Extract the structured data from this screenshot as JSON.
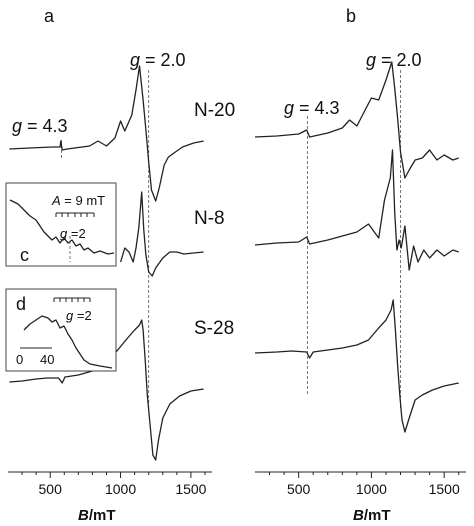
{
  "chart_data": [
    {
      "type": "line",
      "panel_label": "a",
      "xlabel_italic": "B",
      "xlabel_unit": "/mT",
      "xlim": [
        200,
        1650
      ],
      "xticks": [
        500,
        1000,
        1500
      ],
      "series": [
        {
          "name": "N-20",
          "points": [
            [
              210,
              149
            ],
            [
              350,
              148
            ],
            [
              520,
              147
            ],
            [
              570,
              147
            ],
            [
              575,
              141
            ],
            [
              585,
              150
            ],
            [
              620,
              149
            ],
            [
              780,
              146
            ],
            [
              840,
              141
            ],
            [
              900,
              146
            ],
            [
              960,
              138
            ],
            [
              1000,
              121
            ],
            [
              1030,
              131
            ],
            [
              1080,
              115
            ],
            [
              1110,
              90
            ],
            [
              1135,
              66
            ],
            [
              1160,
              100
            ],
            [
              1180,
              130
            ],
            [
              1200,
              162
            ],
            [
              1220,
              190
            ],
            [
              1250,
              201
            ],
            [
              1275,
              188
            ],
            [
              1310,
              165
            ],
            [
              1340,
              157
            ],
            [
              1390,
              152
            ],
            [
              1440,
              147
            ],
            [
              1520,
              143
            ],
            [
              1590,
              141
            ]
          ]
        },
        {
          "name": "N-8",
          "points": [
            [
              1000,
              262
            ],
            [
              1030,
              248
            ],
            [
              1060,
              252
            ],
            [
              1090,
              262
            ],
            [
              1110,
              248
            ],
            [
              1130,
              228
            ],
            [
              1150,
              192
            ],
            [
              1165,
              230
            ],
            [
              1180,
              255
            ],
            [
              1200,
              272
            ],
            [
              1225,
              276
            ],
            [
              1250,
              268
            ],
            [
              1300,
              258
            ],
            [
              1350,
              252
            ],
            [
              1400,
              252
            ],
            [
              1450,
              254
            ],
            [
              1520,
              253
            ],
            [
              1590,
              252
            ]
          ]
        },
        {
          "name": "S-28",
          "points": [
            [
              210,
              382
            ],
            [
              300,
              381
            ],
            [
              400,
              379
            ],
            [
              480,
              378
            ],
            [
              560,
              378
            ],
            [
              585,
              383
            ],
            [
              605,
              377
            ],
            [
              700,
              375
            ],
            [
              800,
              371
            ],
            [
              900,
              362
            ],
            [
              980,
              350
            ],
            [
              1050,
              338
            ],
            [
              1100,
              330
            ],
            [
              1135,
              325
            ],
            [
              1150,
              320
            ],
            [
              1160,
              330
            ],
            [
              1175,
              360
            ],
            [
              1190,
              395
            ],
            [
              1210,
              425
            ],
            [
              1230,
              455
            ],
            [
              1250,
              460
            ],
            [
              1270,
              440
            ],
            [
              1300,
              418
            ],
            [
              1350,
              404
            ],
            [
              1420,
              396
            ],
            [
              1500,
              391
            ],
            [
              1590,
              389
            ]
          ]
        }
      ],
      "annotations": [
        {
          "text_italic": "g",
          "text_rest": " = 4.3",
          "x": 580
        },
        {
          "text_italic": "g",
          "text_rest": " = 2.0",
          "x": 1200
        }
      ],
      "insets": [
        {
          "label": "c",
          "a_italic": "A",
          "a_rest": " = 9 mT",
          "g_italic": "g",
          "g_rest": " =2"
        },
        {
          "label": "d",
          "g_italic": "g",
          "g_rest": " =2",
          "scale_min": "0",
          "scale_max": "40"
        }
      ]
    },
    {
      "type": "line",
      "panel_label": "b",
      "xlabel_italic": "B",
      "xlabel_unit": "/mT",
      "xlim": [
        200,
        1650
      ],
      "xticks": [
        500,
        1000,
        1500
      ],
      "series": [
        {
          "name": "",
          "points": [
            [
              200,
              137
            ],
            [
              350,
              136
            ],
            [
              500,
              134
            ],
            [
              555,
              130
            ],
            [
              575,
              137
            ],
            [
              700,
              133
            ],
            [
              800,
              128
            ],
            [
              850,
              120
            ],
            [
              900,
              126
            ],
            [
              950,
              112
            ],
            [
              1000,
              98
            ],
            [
              1050,
              100
            ],
            [
              1100,
              80
            ],
            [
              1140,
              62
            ],
            [
              1160,
              88
            ],
            [
              1180,
              118
            ],
            [
              1200,
              152
            ],
            [
              1230,
              178
            ],
            [
              1260,
              170
            ],
            [
              1300,
              160
            ],
            [
              1350,
              158
            ],
            [
              1400,
              150
            ],
            [
              1450,
              160
            ],
            [
              1500,
              155
            ],
            [
              1560,
              160
            ],
            [
              1600,
              158
            ]
          ]
        },
        {
          "name": "",
          "points": [
            [
              200,
              245
            ],
            [
              350,
              243
            ],
            [
              500,
              242
            ],
            [
              555,
              237
            ],
            [
              575,
              244
            ],
            [
              700,
              240
            ],
            [
              800,
              236
            ],
            [
              900,
              232
            ],
            [
              980,
              224
            ],
            [
              1050,
              238
            ],
            [
              1090,
              200
            ],
            [
              1130,
              178
            ],
            [
              1145,
              150
            ],
            [
              1160,
              212
            ],
            [
              1175,
              250
            ],
            [
              1190,
              240
            ],
            [
              1205,
              248
            ],
            [
              1230,
              226
            ],
            [
              1260,
              270
            ],
            [
              1290,
              246
            ],
            [
              1320,
              262
            ],
            [
              1360,
              250
            ],
            [
              1400,
              258
            ],
            [
              1450,
              250
            ],
            [
              1500,
              256
            ],
            [
              1560,
              250
            ],
            [
              1600,
              252
            ]
          ]
        },
        {
          "name": "",
          "points": [
            [
              200,
              353
            ],
            [
              350,
              352
            ],
            [
              450,
              351
            ],
            [
              555,
              352
            ],
            [
              575,
              358
            ],
            [
              600,
              352
            ],
            [
              700,
              350
            ],
            [
              800,
              348
            ],
            [
              900,
              345
            ],
            [
              980,
              340
            ],
            [
              1050,
              328
            ],
            [
              1100,
              320
            ],
            [
              1135,
              310
            ],
            [
              1150,
              300
            ],
            [
              1165,
              330
            ],
            [
              1180,
              365
            ],
            [
              1195,
              395
            ],
            [
              1210,
              420
            ],
            [
              1230,
              432
            ],
            [
              1260,
              418
            ],
            [
              1300,
              400
            ],
            [
              1350,
              395
            ],
            [
              1420,
              390
            ],
            [
              1500,
              386
            ],
            [
              1600,
              383
            ]
          ]
        }
      ],
      "annotations": [
        {
          "text_italic": "g",
          "text_rest": " = 4.3",
          "x": 560
        },
        {
          "text_italic": "g",
          "text_rest": " = 2.0",
          "x": 1200
        }
      ]
    }
  ]
}
